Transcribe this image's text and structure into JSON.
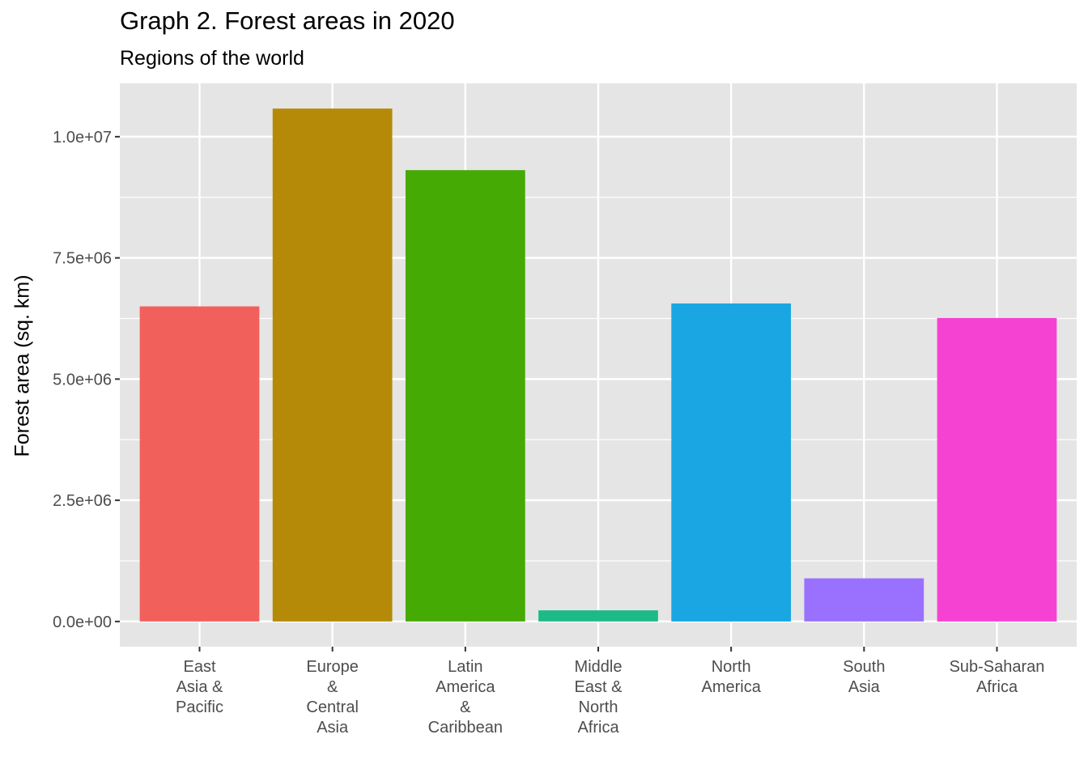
{
  "chart_data": {
    "type": "bar",
    "title": "Graph 2. Forest areas in 2020",
    "subtitle": "Regions of the world",
    "xlabel": "",
    "ylabel": "Forest area (sq. km)",
    "categories": [
      [
        "East",
        "Asia &",
        "Pacific"
      ],
      [
        "Europe",
        "&",
        "Central",
        "Asia"
      ],
      [
        "Latin",
        "America",
        "&",
        "Caribbean"
      ],
      [
        "Middle",
        "East &",
        "North",
        "Africa"
      ],
      [
        "North",
        "America"
      ],
      [
        "South",
        "Asia"
      ],
      [
        "Sub-Saharan",
        "Africa"
      ]
    ],
    "values": [
      6500000,
      10580000,
      9310000,
      230000,
      6560000,
      890000,
      6260000
    ],
    "colors": [
      "#F2605C",
      "#B58A08",
      "#46AA04",
      "#1DBA88",
      "#19A6E3",
      "#9A70FF",
      "#F642D3"
    ],
    "ylim": [
      -520000,
      11100000
    ],
    "yticks": [
      0,
      2500000,
      5000000,
      7500000,
      10000000
    ],
    "ytick_labels": [
      "0.0e+00",
      "2.5e+06",
      "5.0e+06",
      "7.5e+06",
      "1.0e+07"
    ],
    "grid": true,
    "legend": "none",
    "panel_background": "#E5E5E5",
    "grid_color": "#FFFFFF"
  }
}
